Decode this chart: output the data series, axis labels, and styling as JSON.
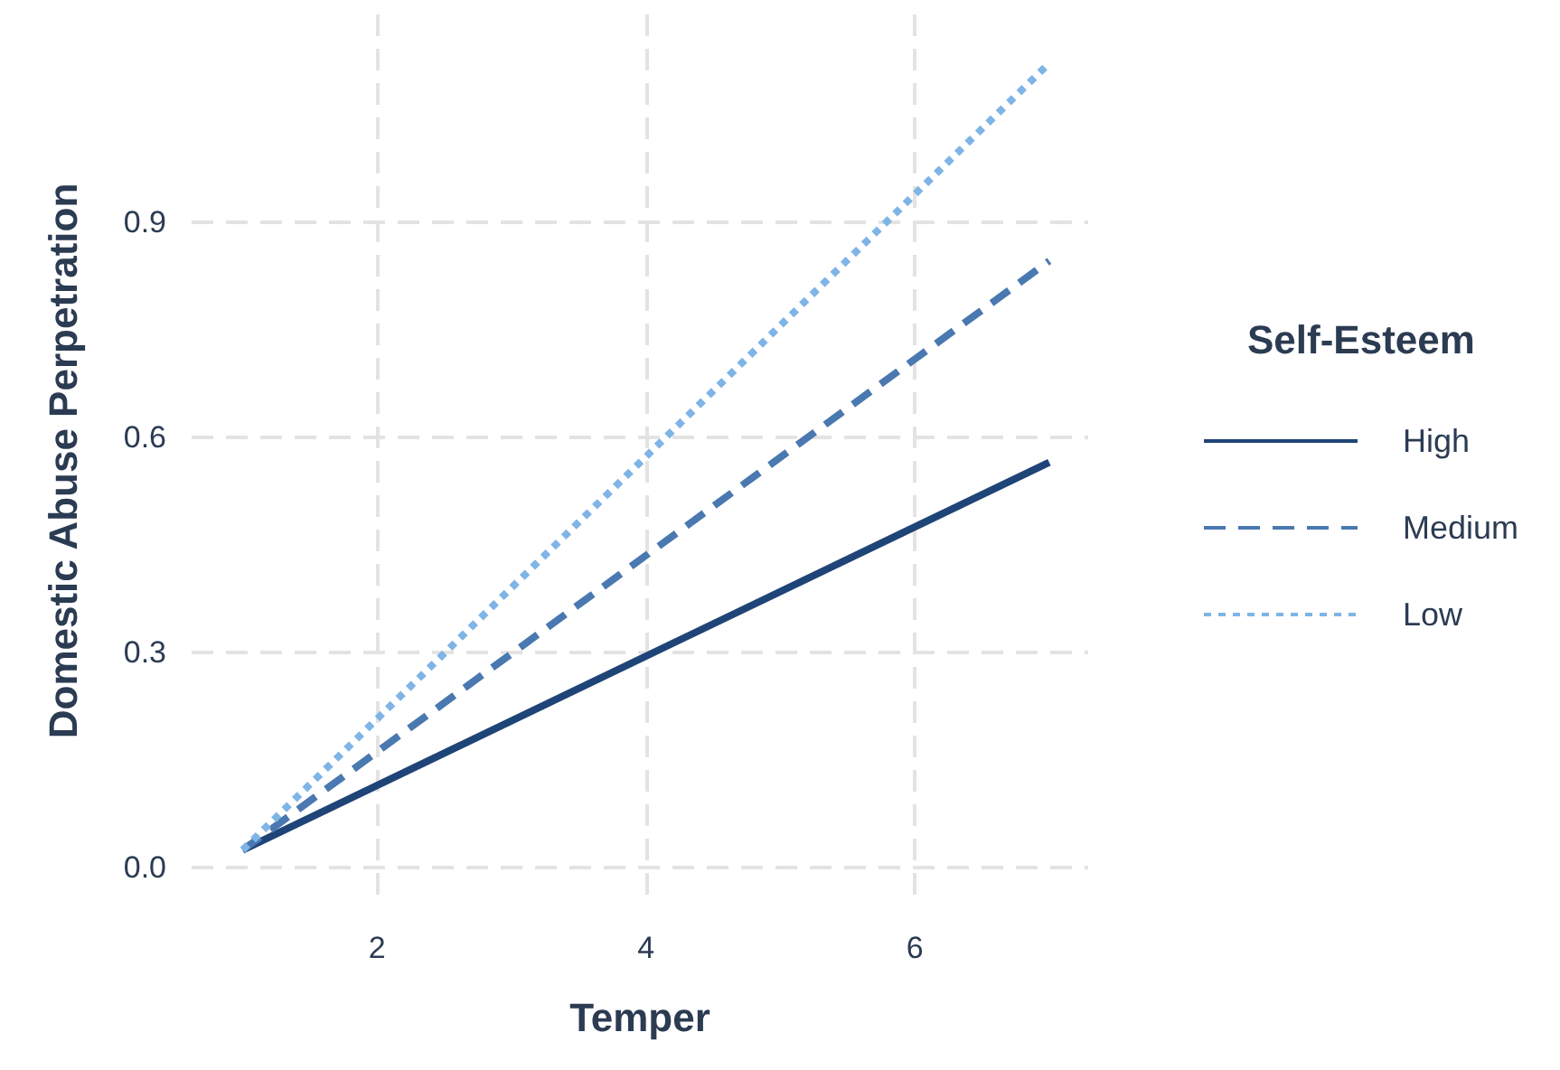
{
  "chart_data": {
    "type": "line",
    "xlabel": "Temper",
    "ylabel": "Domestic Abuse Perpetration",
    "legend_title": "Self-Esteem",
    "legend": "right",
    "grid": true,
    "xlim": [
      0.62,
      7.29
    ],
    "xticks": [
      2,
      4,
      6
    ],
    "ylim": [
      -0.056,
      1.19
    ],
    "yticks": [
      {
        "value": 0,
        "label": "0.0"
      },
      {
        "value": 0.3,
        "label": "0.3"
      },
      {
        "value": 0.6,
        "label": "0.6"
      },
      {
        "value": 0.9,
        "label": "0.9"
      }
    ],
    "x": [
      1,
      7
    ],
    "series": [
      {
        "name": "High",
        "color": "#1f4477",
        "line_style": "solid",
        "values": [
          0.024,
          0.565
        ]
      },
      {
        "name": "Medium",
        "color": "#4a78b0",
        "line_style": "dashed",
        "values": [
          0.024,
          0.846
        ]
      },
      {
        "name": "Low",
        "color": "#7fb4e6",
        "line_style": "dotted",
        "values": [
          0.024,
          1.122
        ]
      }
    ]
  }
}
